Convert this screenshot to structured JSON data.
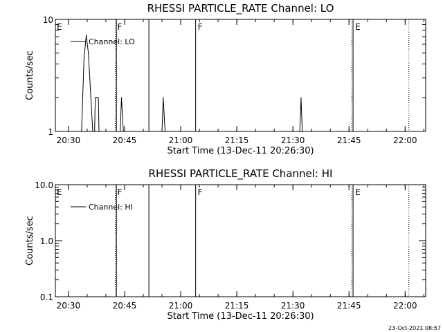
{
  "footer_timestamp": "23-Oct-2021 08:57",
  "chart_data": [
    {
      "type": "line",
      "title": "RHESSI PARTICLE_RATE Channel: LO",
      "xlabel": "Start Time (13-Dec-11 20:26:30)",
      "ylabel": "Counts/sec",
      "y_scale": "log",
      "ylim": [
        1,
        10
      ],
      "y_ticks": [
        {
          "v": 1,
          "label": "1"
        },
        {
          "v": 10,
          "label": "10"
        }
      ],
      "xlim_minutes_after_2026_30": [
        0,
        99
      ],
      "x_ticks": [
        "20:30",
        "20:45",
        "21:00",
        "21:15",
        "21:30",
        "21:45",
        "22:00"
      ],
      "legend": {
        "position": "top-left",
        "label": "Channel: LO"
      },
      "series": [
        {
          "name": "Channel: LO",
          "x": [
            "20:33:30",
            "20:34:10",
            "20:34:45",
            "20:35:20",
            "20:35:50",
            "20:36:30",
            "20:37:00",
            "20:37:10",
            "20:37:30",
            "20:38:00",
            "20:38:10",
            "20:43:50",
            "20:44:10",
            "20:44:40",
            "20:55:00",
            "20:55:20",
            "20:55:50",
            "21:31:50",
            "21:32:10",
            "21:32:30"
          ],
          "y": [
            1,
            4.5,
            7.2,
            5,
            2.5,
            1,
            1,
            2,
            2,
            2,
            1,
            1,
            2,
            1,
            1,
            2,
            1,
            1,
            2,
            1
          ]
        }
      ],
      "annotations": [
        {
          "type": "dotted",
          "time": "20:42:30",
          "letter": "F"
        },
        {
          "type": "solid",
          "time": "20:42:50"
        },
        {
          "type": "solid",
          "time": "20:51:30"
        },
        {
          "type": "solid",
          "time": "21:04:00",
          "letter": "F"
        },
        {
          "type": "dotted",
          "time": "21:45:45"
        },
        {
          "type": "solid",
          "time": "21:46:05",
          "letter": "E"
        },
        {
          "type": "dotted",
          "time": "22:01:00"
        }
      ],
      "left_letter": "E"
    },
    {
      "type": "line",
      "title": "RHESSI PARTICLE_RATE Channel: HI",
      "xlabel": "Start Time (13-Dec-11 20:26:30)",
      "ylabel": "Counts/sec",
      "y_scale": "log",
      "ylim": [
        0.1,
        10
      ],
      "y_ticks": [
        {
          "v": 0.1,
          "label": "0.1"
        },
        {
          "v": 1,
          "label": "1.0"
        },
        {
          "v": 10,
          "label": "10.0"
        }
      ],
      "xlim_minutes_after_2026_30": [
        0,
        99
      ],
      "x_ticks": [
        "20:30",
        "20:45",
        "21:00",
        "21:15",
        "21:30",
        "21:45",
        "22:00"
      ],
      "legend": {
        "position": "top-left",
        "label": "Channel: HI"
      },
      "series": [
        {
          "name": "Channel: HI",
          "x": [],
          "y": []
        }
      ],
      "annotations": [
        {
          "type": "dotted",
          "time": "20:42:30",
          "letter": "F"
        },
        {
          "type": "solid",
          "time": "20:42:50"
        },
        {
          "type": "solid",
          "time": "20:51:30"
        },
        {
          "type": "solid",
          "time": "21:04:00",
          "letter": "F"
        },
        {
          "type": "dotted",
          "time": "21:45:45"
        },
        {
          "type": "solid",
          "time": "21:46:05",
          "letter": "E"
        },
        {
          "type": "dotted",
          "time": "22:01:00"
        }
      ],
      "left_letter": "E"
    }
  ]
}
